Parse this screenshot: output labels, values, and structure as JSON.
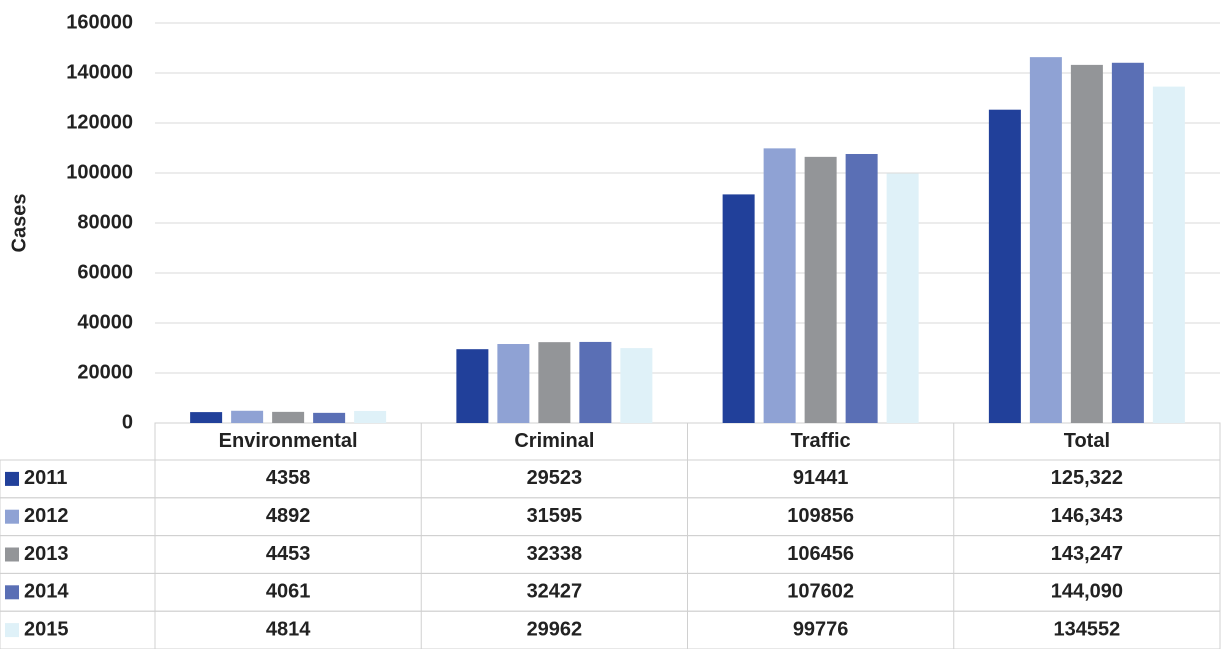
{
  "chart_data": {
    "type": "bar",
    "y_label": "Cases",
    "categories": [
      "Environmental",
      "Criminal",
      "Traffic",
      "Total"
    ],
    "series": [
      {
        "name": "2011",
        "color": "#21409a",
        "values": [
          4358,
          29523,
          91441,
          125322
        ],
        "value_labels": [
          "4358",
          "29523",
          "91441",
          "125,322"
        ]
      },
      {
        "name": "2012",
        "color": "#8fa2d4",
        "values": [
          4892,
          31595,
          109856,
          146343
        ],
        "value_labels": [
          "4892",
          "31595",
          "109856",
          "146,343"
        ]
      },
      {
        "name": "2013",
        "color": "#939598",
        "values": [
          4453,
          32338,
          106456,
          143247
        ],
        "value_labels": [
          "4453",
          "32338",
          "106456",
          "143,247"
        ]
      },
      {
        "name": "2014",
        "color": "#5a6fb5",
        "values": [
          4061,
          32427,
          107602,
          144090
        ],
        "value_labels": [
          "4061",
          "32427",
          "107602",
          "144,090"
        ]
      },
      {
        "name": "2015",
        "color": "#dff1f8",
        "values": [
          4814,
          29962,
          99776,
          134552
        ],
        "value_labels": [
          "4814",
          "29962",
          "99776",
          "134552"
        ]
      }
    ],
    "ylim": [
      0,
      160000
    ],
    "yticks": [
      0,
      20000,
      40000,
      60000,
      80000,
      100000,
      120000,
      140000,
      160000
    ],
    "grid": true
  }
}
